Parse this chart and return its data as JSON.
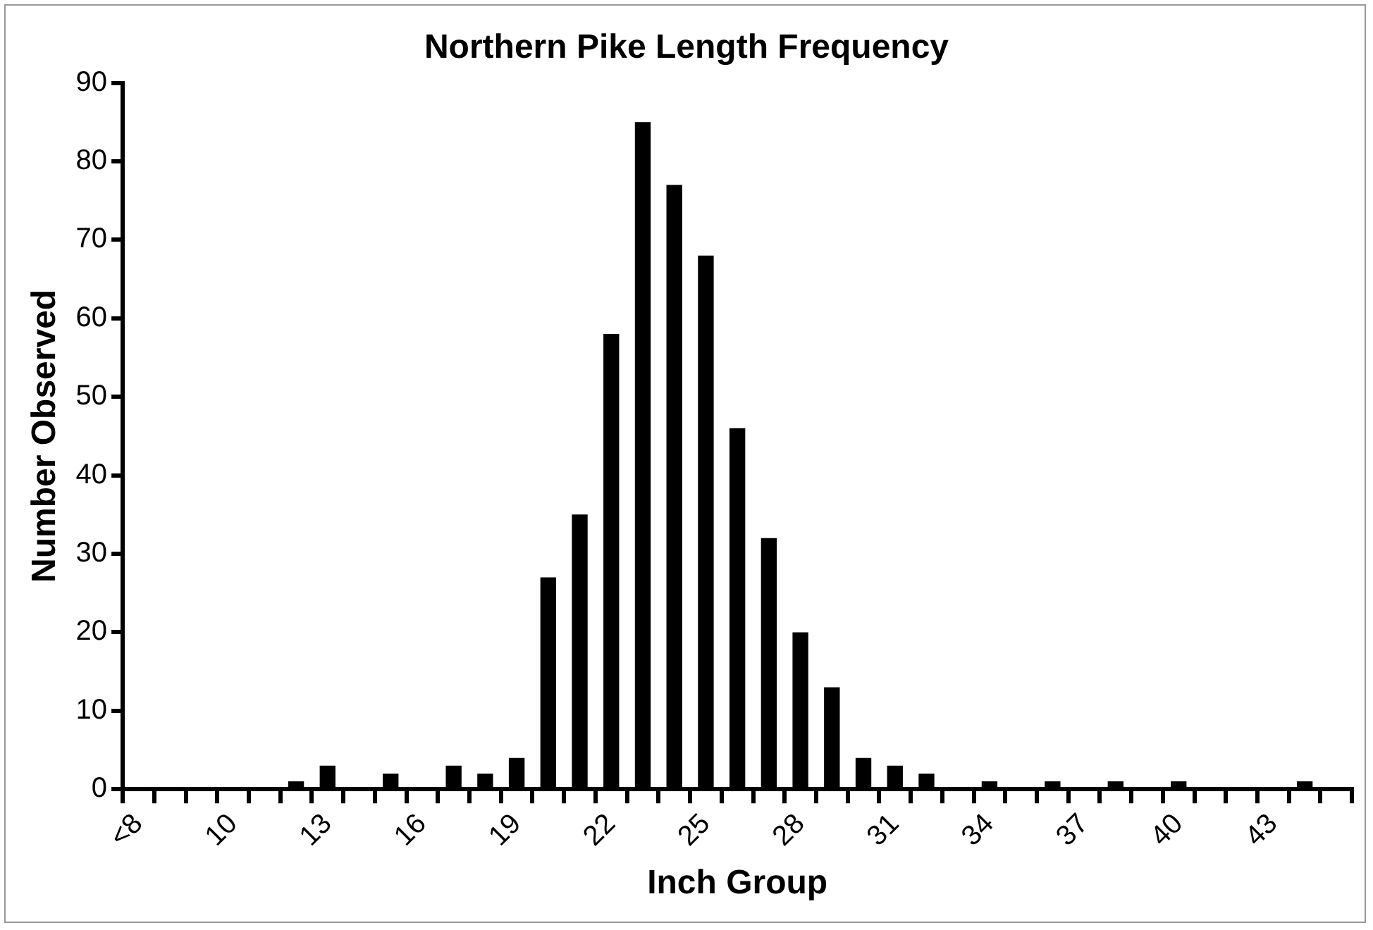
{
  "chart_data": {
    "type": "bar",
    "title": "Northern Pike Length Frequency",
    "xlabel": "Inch Group",
    "ylabel": "Number Observed",
    "categories": [
      "<8",
      null,
      null,
      "10",
      null,
      null,
      "13",
      null,
      null,
      "16",
      null,
      null,
      "19",
      null,
      null,
      "22",
      null,
      null,
      "25",
      null,
      null,
      "28",
      null,
      null,
      "31",
      null,
      null,
      "34",
      null,
      null,
      "37",
      null,
      null,
      "40",
      null,
      null,
      "43",
      null,
      null
    ],
    "values": [
      0,
      0,
      0,
      0,
      0,
      1,
      3,
      0,
      2,
      0,
      3,
      2,
      4,
      27,
      35,
      58,
      85,
      77,
      68,
      46,
      32,
      20,
      13,
      4,
      3,
      2,
      0,
      1,
      0,
      1,
      0,
      1,
      0,
      1,
      0,
      0,
      0,
      1,
      0
    ],
    "color": "#000000",
    "ylim": [
      0,
      90
    ],
    "yticks": [
      0,
      10,
      20,
      30,
      40,
      50,
      60,
      70,
      80,
      90
    ],
    "grid": false,
    "legend": false
  }
}
